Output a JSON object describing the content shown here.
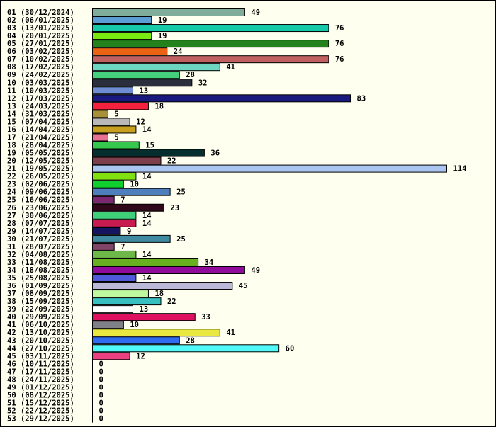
{
  "chart_data": {
    "type": "bar",
    "orientation": "horizontal",
    "title": "",
    "xlabel": "",
    "ylabel": "",
    "xlim": [
      0,
      114
    ],
    "grid": false,
    "legend": "none",
    "categories": [
      "01 (30/12/2024)",
      "02 (06/01/2025)",
      "03 (13/01/2025)",
      "04 (20/01/2025)",
      "05 (27/01/2025)",
      "06 (03/02/2025)",
      "07 (10/02/2025)",
      "08 (17/02/2025)",
      "09 (24/02/2025)",
      "10 (03/03/2025)",
      "11 (10/03/2025)",
      "12 (17/03/2025)",
      "13 (24/03/2025)",
      "14 (31/03/2025)",
      "15 (07/04/2025)",
      "16 (14/04/2025)",
      "17 (21/04/2025)",
      "18 (28/04/2025)",
      "19 (05/05/2025)",
      "20 (12/05/2025)",
      "21 (19/05/2025)",
      "22 (26/05/2025)",
      "23 (02/06/2025)",
      "24 (09/06/2025)",
      "25 (16/06/2025)",
      "26 (23/06/2025)",
      "27 (30/06/2025)",
      "28 (07/07/2025)",
      "29 (14/07/2025)",
      "30 (21/07/2025)",
      "31 (28/07/2025)",
      "32 (04/08/2025)",
      "33 (11/08/2025)",
      "34 (18/08/2025)",
      "35 (25/08/2025)",
      "36 (01/09/2025)",
      "37 (08/09/2025)",
      "38 (15/09/2025)",
      "39 (22/09/2025)",
      "40 (29/09/2025)",
      "41 (06/10/2025)",
      "42 (13/10/2025)",
      "43 (20/10/2025)",
      "44 (27/10/2025)",
      "45 (03/11/2025)",
      "46 (10/11/2025)",
      "47 (17/11/2025)",
      "48 (24/11/2025)",
      "49 (01/12/2025)",
      "50 (08/12/2025)",
      "51 (15/12/2025)",
      "52 (22/12/2025)",
      "53 (29/12/2025)"
    ],
    "values": [
      49,
      19,
      76,
      19,
      76,
      24,
      76,
      41,
      28,
      32,
      13,
      83,
      18,
      5,
      12,
      14,
      5,
      15,
      36,
      22,
      114,
      14,
      10,
      25,
      7,
      23,
      14,
      14,
      9,
      25,
      7,
      14,
      34,
      49,
      14,
      45,
      18,
      22,
      13,
      33,
      10,
      41,
      28,
      60,
      12,
      0,
      0,
      0,
      0,
      0,
      0,
      0,
      0
    ],
    "colors": [
      "#7fad99",
      "#5b9fd6",
      "#16c9a8",
      "#7ce812",
      "#23821c",
      "#ea6212",
      "#c06060",
      "#6dd6c0",
      "#45d07e",
      "#2b2f3d",
      "#6f8ed2",
      "#1a1a7e",
      "#f2213e",
      "#a89038",
      "#b8b8b8",
      "#c8a020",
      "#e87090",
      "#36c84d",
      "#062e2e",
      "#7e3f4c",
      "#a9c5f0",
      "#80e010",
      "#10d030",
      "#4e7fbc",
      "#7c2870",
      "#30081a",
      "#40d07a",
      "#c81c50",
      "#141460",
      "#3f8aa0",
      "#804468",
      "#6db848",
      "#68b020",
      "#900a9c",
      "#4f5ad8",
      "#bcb8d8",
      "#c0f8a0",
      "#38c0c0",
      "#ffffff",
      "#e01060",
      "#808088",
      "#e8e840",
      "#2f6cf0",
      "#50f8f8",
      "#e84080",
      "#ffffff",
      "#ffffff",
      "#ffffff",
      "#ffffff",
      "#ffffff",
      "#ffffff",
      "#ffffff",
      "#ffffff"
    ]
  }
}
